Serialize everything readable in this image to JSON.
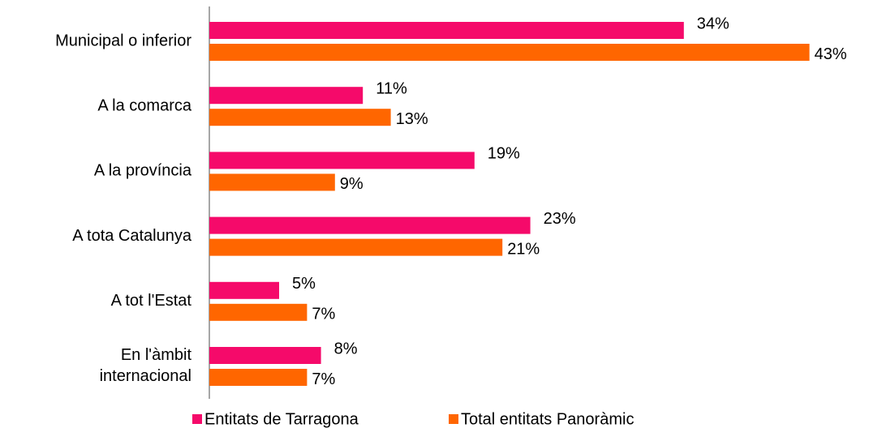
{
  "chart_data": {
    "type": "bar",
    "orientation": "horizontal",
    "categories": [
      "Municipal o inferior",
      "A la comarca",
      "A la província",
      "A tota Catalunya",
      "A tot l'Estat",
      "En l'àmbit internacional"
    ],
    "series": [
      {
        "name": "Entitats de Tarragona",
        "color": "#f50a6a",
        "values": [
          34,
          11,
          19,
          23,
          5,
          8
        ],
        "value_labels": [
          "34%",
          "11%",
          "19%",
          "23%",
          "5%",
          "8%"
        ]
      },
      {
        "name": "Total entitats Panoràmic",
        "color": "#ff6600",
        "values": [
          43,
          13,
          9,
          21,
          7,
          7
        ],
        "value_labels": [
          "43%",
          "13%",
          "9%",
          "21%",
          "7%",
          "7%"
        ]
      }
    ]
  }
}
